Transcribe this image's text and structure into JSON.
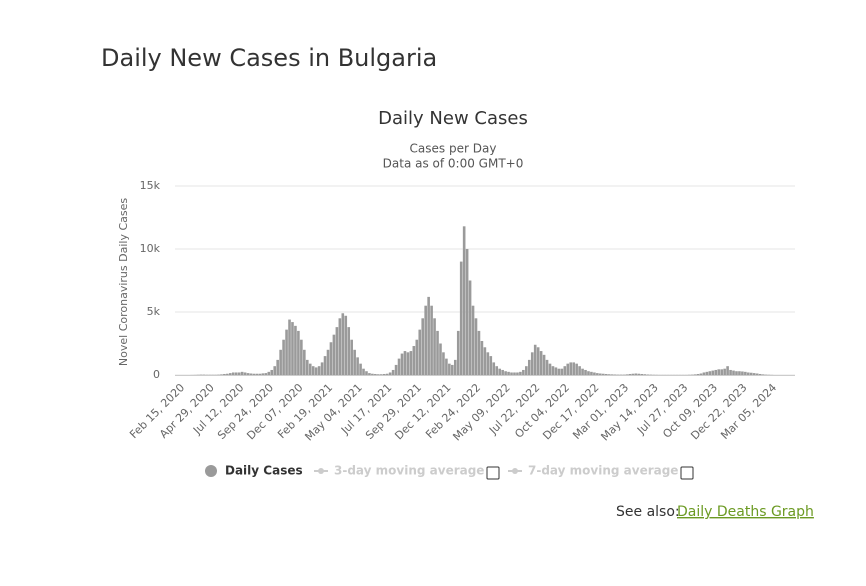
{
  "header": {
    "title": "Daily New Cases in Bulgaria"
  },
  "chart_data": {
    "type": "bar",
    "title": "Daily New Cases",
    "subtitle": "Cases per Day",
    "note": "Data as of 0:00 GMT+0",
    "y_label": "Novel Coronavirus Daily Cases",
    "ylim": [
      0,
      15000
    ],
    "yticks": [
      0,
      {
        "value": 5000,
        "label": "5k"
      },
      {
        "value": 10000,
        "label": "10k"
      },
      {
        "value": 15000,
        "label": "15k"
      }
    ],
    "grid": true,
    "categories": [
      "Feb 15, 2020",
      null,
      null,
      null,
      null,
      null,
      null,
      null,
      null,
      null,
      "Apr 29, 2020",
      null,
      null,
      null,
      null,
      null,
      null,
      null,
      null,
      null,
      "Jul 12, 2020",
      null,
      null,
      null,
      null,
      null,
      null,
      null,
      null,
      null,
      "Sep 24, 2020",
      null,
      null,
      null,
      null,
      null,
      null,
      null,
      null,
      null,
      "Dec 07, 2020",
      null,
      null,
      null,
      null,
      null,
      null,
      null,
      null,
      null,
      "Feb 19, 2021",
      null,
      null,
      null,
      null,
      null,
      null,
      null,
      null,
      null,
      "May 04, 2021",
      null,
      null,
      null,
      null,
      null,
      null,
      null,
      null,
      null,
      "Jul 17, 2021",
      null,
      null,
      null,
      null,
      null,
      null,
      null,
      null,
      null,
      "Sep 29, 2021",
      null,
      null,
      null,
      null,
      null,
      null,
      null,
      null,
      null,
      "Dec 12, 2021",
      null,
      null,
      null,
      null,
      null,
      null,
      null,
      null,
      null,
      "Feb 24, 2022",
      null,
      null,
      null,
      null,
      null,
      null,
      null,
      null,
      null,
      "May 09, 2022",
      null,
      null,
      null,
      null,
      null,
      null,
      null,
      null,
      null,
      "Jul 22, 2022",
      null,
      null,
      null,
      null,
      null,
      null,
      null,
      null,
      null,
      "Oct 04, 2022",
      null,
      null,
      null,
      null,
      null,
      null,
      null,
      null,
      null,
      "Dec 17, 2022",
      null,
      null,
      null,
      null,
      null,
      null,
      null,
      null,
      null,
      "Mar 01, 2023",
      null,
      null,
      null,
      null,
      null,
      null,
      null,
      null,
      null,
      "May 14, 2023",
      null,
      null,
      null,
      null,
      null,
      null,
      null,
      null,
      null,
      "Jul 27, 2023",
      null,
      null,
      null,
      null,
      null,
      null,
      null,
      null,
      null,
      "Oct 09, 2023",
      null,
      null,
      null,
      null,
      null,
      null,
      null,
      null,
      null,
      "Dec 22, 2023",
      null,
      null,
      null,
      null,
      null,
      null,
      null,
      null,
      null,
      "Mar 05, 2024"
    ],
    "series": [
      {
        "name": "Daily Cases",
        "color": "#9a9a9a",
        "values": [
          0,
          0,
          0,
          0,
          5,
          10,
          20,
          30,
          30,
          20,
          20,
          20,
          20,
          30,
          50,
          80,
          100,
          150,
          200,
          200,
          200,
          250,
          200,
          150,
          120,
          100,
          100,
          100,
          130,
          150,
          250,
          400,
          700,
          1200,
          2000,
          2800,
          3600,
          4400,
          4200,
          3900,
          3500,
          2800,
          2000,
          1200,
          900,
          700,
          600,
          700,
          1000,
          1500,
          2000,
          2600,
          3200,
          3800,
          4500,
          4900,
          4700,
          3800,
          2800,
          2000,
          1400,
          900,
          500,
          300,
          150,
          100,
          80,
          60,
          60,
          80,
          100,
          200,
          400,
          800,
          1300,
          1700,
          1900,
          1800,
          1900,
          2300,
          2800,
          3600,
          4500,
          5500,
          6200,
          5500,
          4500,
          3500,
          2500,
          1800,
          1300,
          900,
          800,
          1200,
          3500,
          9000,
          11800,
          10000,
          7500,
          5500,
          4500,
          3500,
          2700,
          2200,
          1800,
          1500,
          1000,
          700,
          500,
          400,
          300,
          250,
          200,
          200,
          200,
          250,
          400,
          700,
          1200,
          1800,
          2400,
          2200,
          1900,
          1600,
          1200,
          900,
          700,
          600,
          500,
          500,
          700,
          900,
          1000,
          1000,
          900,
          700,
          500,
          400,
          300,
          250,
          200,
          150,
          120,
          100,
          80,
          60,
          50,
          40,
          30,
          30,
          30,
          50,
          80,
          100,
          120,
          100,
          80,
          60,
          40,
          30,
          20,
          15,
          10,
          10,
          10,
          10,
          10,
          10,
          10,
          10,
          10,
          10,
          20,
          30,
          50,
          80,
          120,
          200,
          250,
          300,
          350,
          400,
          450,
          450,
          500,
          700,
          400,
          350,
          300,
          300,
          280,
          250,
          200,
          180,
          150,
          120,
          80,
          50,
          30,
          20,
          10
        ]
      }
    ],
    "inactive_series": [
      {
        "name": "3-day moving average",
        "color": "#cccccc"
      },
      {
        "name": "7-day moving average",
        "color": "#cccccc"
      }
    ]
  },
  "see_also": {
    "label": "See also:",
    "link": "Daily Deaths Graph"
  }
}
